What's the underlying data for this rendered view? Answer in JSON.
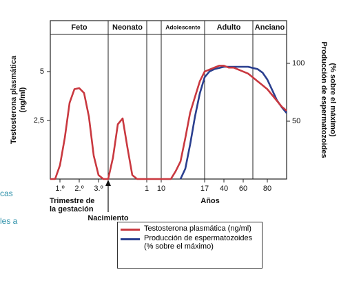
{
  "page_fragments": [
    "cas",
    "les a"
  ],
  "chart_data": {
    "type": "line",
    "stages": [
      "Feto",
      "Neonato",
      "Adolescente",
      "Adulto",
      "Anciano"
    ],
    "ylabel": [
      "Testosterona plasmática",
      "(ng/ml)"
    ],
    "y2label": [
      "Producción de espermatozoides",
      "(% sobre el máximo)"
    ],
    "xlabel": "Años",
    "annotations": {
      "gestation": [
        "Trimestre de",
        "la gestación"
      ],
      "birth": "Nacimiento"
    },
    "categories": [
      null,
      null,
      "1.º",
      null,
      null,
      null,
      "2.º",
      null,
      null,
      null,
      "3.º",
      null,
      null,
      null,
      null,
      null,
      null,
      null,
      null,
      null,
      "1",
      null,
      null,
      "10",
      null,
      null,
      null,
      null,
      null,
      null,
      null,
      null,
      "17",
      null,
      null,
      null,
      "40",
      null,
      null,
      null,
      "60",
      null,
      null,
      null,
      null,
      "80",
      null,
      null,
      null,
      null
    ],
    "ylim": [
      -0.5,
      6.9
    ],
    "yticks": [
      {
        "value": 2.5,
        "label": "2,5"
      },
      5
    ],
    "y2lim": [
      0,
      125
    ],
    "y2ticks": [
      50,
      100
    ],
    "series": [
      {
        "name": "Testosterona plasmática (ng/ml)",
        "color": "#c9383f",
        "values": [
          -0.5,
          -0.5,
          0.2,
          1.6,
          3.4,
          4.1,
          4.15,
          3.9,
          2.7,
          0.7,
          -0.3,
          -0.5,
          -0.5,
          0.6,
          2.3,
          2.6,
          1.1,
          -0.3,
          -0.5,
          -0.5,
          -0.5,
          -0.5,
          -0.5,
          -0.5,
          -0.5,
          -0.5,
          -0.1,
          0.4,
          1.6,
          2.9,
          3.7,
          4.5,
          5.0,
          5.1,
          5.2,
          5.3,
          5.3,
          5.2,
          5.2,
          5.1,
          5.0,
          4.9,
          4.7,
          4.5,
          4.3,
          4.1,
          3.8,
          3.5,
          3.2,
          3.0
        ]
      },
      {
        "name": "Producción de espermatozoides (% sobre el máximo)",
        "color": "#2a3f8f",
        "axis": "y2",
        "values": [
          null,
          null,
          null,
          null,
          null,
          null,
          null,
          null,
          null,
          null,
          null,
          null,
          null,
          null,
          null,
          null,
          null,
          null,
          null,
          null,
          null,
          null,
          null,
          null,
          null,
          null,
          null,
          0,
          9,
          30,
          54,
          74,
          88,
          93,
          95,
          96,
          97,
          97,
          97,
          97,
          97,
          97,
          96,
          95,
          92,
          86,
          77,
          68,
          62,
          57
        ]
      }
    ]
  }
}
